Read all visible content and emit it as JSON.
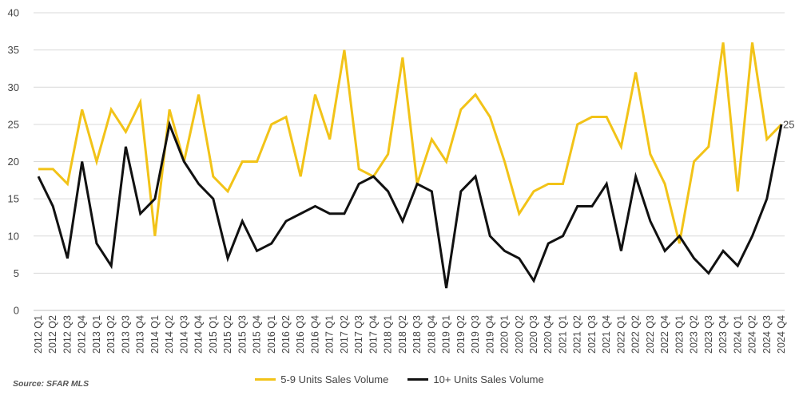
{
  "chart_data": {
    "type": "line",
    "categories": [
      "2012 Q1",
      "2012 Q2",
      "2012 Q3",
      "2012 Q4",
      "2013 Q1",
      "2013 Q2",
      "2013 Q3",
      "2013 Q4",
      "2014 Q1",
      "2014 Q2",
      "2014 Q3",
      "2014 Q4",
      "2015 Q1",
      "2015 Q2",
      "2015 Q3",
      "2015 Q4",
      "2016 Q1",
      "2016 Q2",
      "2016 Q3",
      "2016 Q4",
      "2017 Q1",
      "2017 Q2",
      "2017 Q3",
      "2017 Q4",
      "2018 Q1",
      "2018 Q2",
      "2018 Q3",
      "2018 Q4",
      "2019 Q1",
      "2019 Q2",
      "2019 Q3",
      "2019 Q4",
      "2020 Q1",
      "2020 Q2",
      "2020 Q3",
      "2020 Q4",
      "2021 Q1",
      "2021 Q2",
      "2021 Q3",
      "2021 Q4",
      "2022 Q1",
      "2022 Q2",
      "2022 Q3",
      "2022 Q4",
      "2023 Q1",
      "2023 Q2",
      "2023 Q3",
      "2023 Q4",
      "2024 Q1",
      "2024 Q2",
      "2024 Q3",
      "2024 Q4"
    ],
    "series": [
      {
        "name": "5-9 Units Sales Volume",
        "color": "#F2C318",
        "values": [
          19,
          19,
          17,
          27,
          20,
          27,
          24,
          28,
          10,
          27,
          20,
          29,
          18,
          16,
          20,
          20,
          25,
          26,
          18,
          29,
          23,
          35,
          19,
          18,
          21,
          34,
          17,
          23,
          20,
          27,
          29,
          26,
          20,
          13,
          16,
          17,
          17,
          25,
          26,
          26,
          22,
          32,
          21,
          17,
          9,
          20,
          22,
          36,
          16,
          36,
          23,
          25
        ]
      },
      {
        "name": "10+ Units Sales Volume",
        "color": "#111111",
        "values": [
          18,
          14,
          7,
          20,
          9,
          6,
          22,
          13,
          15,
          25,
          20,
          17,
          15,
          7,
          12,
          8,
          9,
          12,
          13,
          14,
          13,
          13,
          17,
          18,
          16,
          12,
          17,
          16,
          3,
          16,
          18,
          10,
          8,
          7,
          4,
          9,
          10,
          14,
          14,
          17,
          8,
          18,
          12,
          8,
          10,
          7,
          5,
          8,
          6,
          10,
          15,
          25
        ]
      }
    ],
    "ylim": [
      0,
      40
    ],
    "yticks": [
      0,
      5,
      10,
      15,
      20,
      25,
      30,
      35,
      40
    ],
    "grid": true,
    "legend_position": "bottom",
    "end_label": "25",
    "source": "Source: SFAR MLS"
  }
}
